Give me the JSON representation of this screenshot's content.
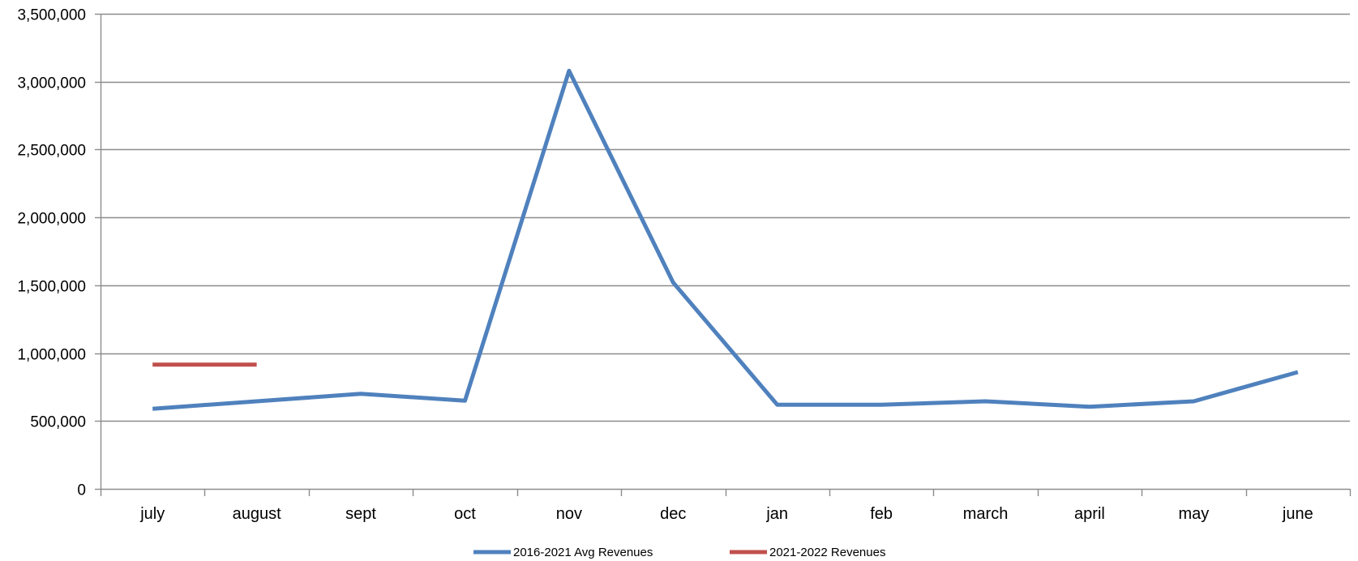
{
  "chart_data": {
    "type": "line",
    "title": "",
    "xlabel": "",
    "ylabel": "",
    "categories": [
      "july",
      "august",
      "sept",
      "oct",
      "nov",
      "dec",
      "jan",
      "feb",
      "march",
      "april",
      "may",
      "june"
    ],
    "ylim": [
      0,
      3500000
    ],
    "yticks": [
      0,
      500000,
      1000000,
      1500000,
      2000000,
      2500000,
      3000000,
      3500000
    ],
    "ytick_labels": [
      "0",
      "500,000",
      "1,000,000",
      "1,500,000",
      "2,000,000",
      "2,500,000",
      "3,000,000",
      "3,500,000"
    ],
    "grid": "horizontal",
    "legend_position": "bottom",
    "series": [
      {
        "name": "2016-2021 Avg Revenues",
        "color": "#4F81BD",
        "values": [
          590000,
          645000,
          700000,
          650000,
          3080000,
          1520000,
          620000,
          620000,
          645000,
          605000,
          645000,
          860000
        ]
      },
      {
        "name": "2021-2022 Revenues",
        "color": "#C0504D",
        "values": [
          915000,
          915000,
          null,
          null,
          null,
          null,
          null,
          null,
          null,
          null,
          null,
          null
        ]
      }
    ]
  }
}
